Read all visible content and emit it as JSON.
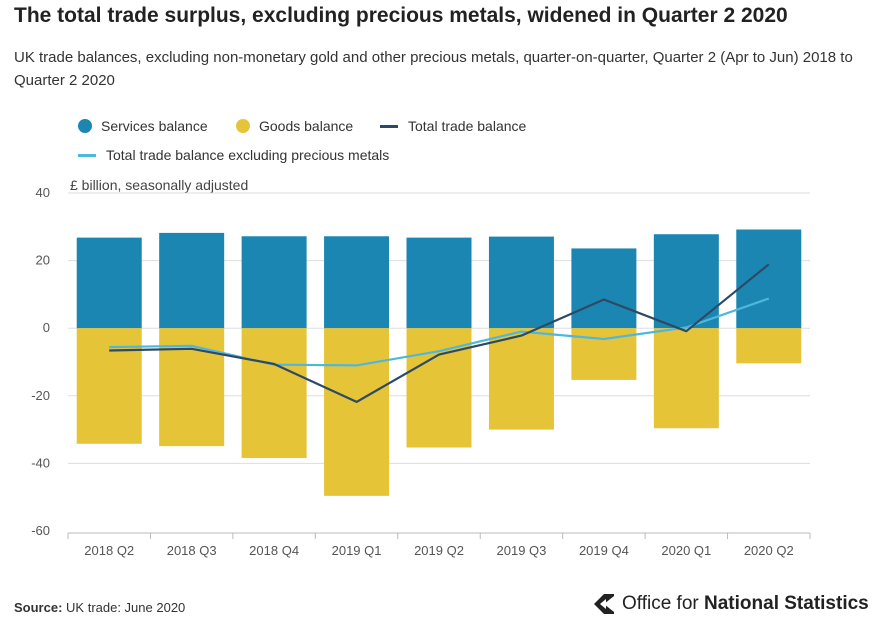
{
  "title": "The total trade surplus, excluding precious metals, widened in Quarter 2 2020",
  "subtitle": "UK trade balances, excluding non-monetary gold and other precious metals, quarter-on-quarter, Quarter 2 (Apr to Jun) 2018 to Quarter 2 2020",
  "legend": {
    "services": "Services balance",
    "goods": "Goods balance",
    "total": "Total trade balance",
    "total_excl": "Total trade balance excluding precious metals"
  },
  "colors": {
    "services": "#1b86b2",
    "goods": "#e6c437",
    "total": "#2d4a64",
    "total_excl": "#4fb7dd"
  },
  "chart_data": {
    "type": "bar",
    "stacked": true,
    "ylabel": "£ billion, seasonally adjusted",
    "ylim": [
      -60,
      40
    ],
    "yticks": [
      40,
      20,
      0,
      -20,
      -40,
      -60
    ],
    "categories": [
      "2018 Q2",
      "2018 Q3",
      "2018 Q4",
      "2019 Q1",
      "2019 Q2",
      "2019 Q3",
      "2019 Q4",
      "2020 Q1",
      "2020 Q2"
    ],
    "series": [
      {
        "name": "Services balance",
        "type": "bar",
        "values": [
          26.8,
          28.2,
          27.2,
          27.2,
          26.8,
          27.1,
          23.6,
          27.8,
          29.2
        ]
      },
      {
        "name": "Goods balance",
        "type": "bar",
        "values": [
          -34.2,
          -34.9,
          -38.4,
          -49.6,
          -35.3,
          -30.0,
          -15.3,
          -29.6,
          -10.4
        ]
      },
      {
        "name": "Total trade balance",
        "type": "line",
        "values": [
          -6.6,
          -6.1,
          -10.6,
          -21.8,
          -7.8,
          -2.2,
          8.5,
          -0.9,
          18.9
        ]
      },
      {
        "name": "Total trade balance excluding precious metals",
        "type": "line",
        "values": [
          -5.6,
          -5.2,
          -10.8,
          -11.0,
          -6.8,
          -1.0,
          -3.2,
          0.2,
          8.8
        ]
      }
    ]
  },
  "footer": {
    "source_label": "Source:",
    "source_text": "UK trade: June 2020"
  },
  "logo": {
    "text_regular": "Office for ",
    "text_bold": "National Statistics"
  }
}
